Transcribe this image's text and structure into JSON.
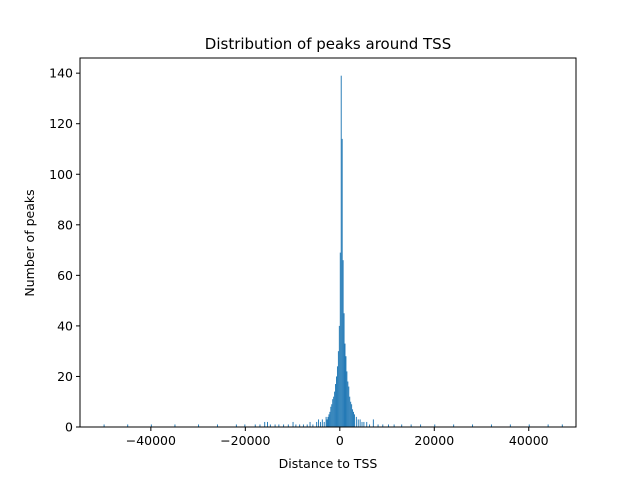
{
  "chart_data": {
    "type": "bar",
    "title": "Distribution of peaks around TSS",
    "xlabel": "Distance to TSS",
    "ylabel": "Number of peaks",
    "xlim": [
      -55000,
      50000
    ],
    "ylim": [
      0,
      146
    ],
    "xticks": [
      -40000,
      -20000,
      0,
      20000,
      40000
    ],
    "xtick_labels": [
      "−40000",
      "−20000",
      "0",
      "20000",
      "40000"
    ],
    "yticks": [
      0,
      20,
      40,
      60,
      80,
      100,
      120,
      140
    ],
    "ytick_labels": [
      "0",
      "20",
      "40",
      "60",
      "80",
      "100",
      "120",
      "140"
    ],
    "bar_color": "#1f77b4",
    "grid": false,
    "legend": "none",
    "bin_width": 200,
    "bins": [
      {
        "x": -50000,
        "y": 1
      },
      {
        "x": -45000,
        "y": 1
      },
      {
        "x": -40000,
        "y": 1
      },
      {
        "x": -35000,
        "y": 1
      },
      {
        "x": -30000,
        "y": 1
      },
      {
        "x": -26000,
        "y": 1
      },
      {
        "x": -22000,
        "y": 1
      },
      {
        "x": -20200,
        "y": 1
      },
      {
        "x": -18000,
        "y": 1
      },
      {
        "x": -17000,
        "y": 1
      },
      {
        "x": -16000,
        "y": 2
      },
      {
        "x": -15400,
        "y": 2
      },
      {
        "x": -14800,
        "y": 1
      },
      {
        "x": -13800,
        "y": 1
      },
      {
        "x": -13000,
        "y": 1
      },
      {
        "x": -12000,
        "y": 1
      },
      {
        "x": -11000,
        "y": 1
      },
      {
        "x": -10000,
        "y": 2
      },
      {
        "x": -9400,
        "y": 1
      },
      {
        "x": -8600,
        "y": 1
      },
      {
        "x": -7800,
        "y": 1
      },
      {
        "x": -7000,
        "y": 1
      },
      {
        "x": -6400,
        "y": 2
      },
      {
        "x": -5800,
        "y": 1
      },
      {
        "x": -5000,
        "y": 2
      },
      {
        "x": -4600,
        "y": 3
      },
      {
        "x": -4200,
        "y": 2
      },
      {
        "x": -3800,
        "y": 3
      },
      {
        "x": -3400,
        "y": 2
      },
      {
        "x": -3000,
        "y": 4
      },
      {
        "x": -2800,
        "y": 3
      },
      {
        "x": -2600,
        "y": 4
      },
      {
        "x": -2400,
        "y": 5
      },
      {
        "x": -2200,
        "y": 6
      },
      {
        "x": -2000,
        "y": 8
      },
      {
        "x": -1800,
        "y": 9
      },
      {
        "x": -1600,
        "y": 11
      },
      {
        "x": -1400,
        "y": 12
      },
      {
        "x": -1200,
        "y": 14
      },
      {
        "x": -1000,
        "y": 17
      },
      {
        "x": -800,
        "y": 20
      },
      {
        "x": -600,
        "y": 24
      },
      {
        "x": -400,
        "y": 30
      },
      {
        "x": -200,
        "y": 40
      },
      {
        "x": 0,
        "y": 69
      },
      {
        "x": 200,
        "y": 139
      },
      {
        "x": 400,
        "y": 114
      },
      {
        "x": 600,
        "y": 66
      },
      {
        "x": 800,
        "y": 45
      },
      {
        "x": 1000,
        "y": 33
      },
      {
        "x": 1200,
        "y": 28
      },
      {
        "x": 1400,
        "y": 22
      },
      {
        "x": 1600,
        "y": 18
      },
      {
        "x": 1800,
        "y": 16
      },
      {
        "x": 2000,
        "y": 12
      },
      {
        "x": 2200,
        "y": 10
      },
      {
        "x": 2400,
        "y": 9
      },
      {
        "x": 2600,
        "y": 7
      },
      {
        "x": 2800,
        "y": 6
      },
      {
        "x": 3000,
        "y": 5
      },
      {
        "x": 3400,
        "y": 4
      },
      {
        "x": 3800,
        "y": 3
      },
      {
        "x": 4200,
        "y": 3
      },
      {
        "x": 4600,
        "y": 2
      },
      {
        "x": 5000,
        "y": 2
      },
      {
        "x": 5600,
        "y": 2
      },
      {
        "x": 6200,
        "y": 1
      },
      {
        "x": 7000,
        "y": 3
      },
      {
        "x": 8000,
        "y": 1
      },
      {
        "x": 9000,
        "y": 1
      },
      {
        "x": 10200,
        "y": 1
      },
      {
        "x": 11400,
        "y": 1
      },
      {
        "x": 13000,
        "y": 1
      },
      {
        "x": 15000,
        "y": 1
      },
      {
        "x": 17000,
        "y": 1
      },
      {
        "x": 20000,
        "y": 1
      },
      {
        "x": 24000,
        "y": 1
      },
      {
        "x": 28000,
        "y": 1
      },
      {
        "x": 32000,
        "y": 1
      },
      {
        "x": 36000,
        "y": 1
      },
      {
        "x": 40000,
        "y": 1
      },
      {
        "x": 44000,
        "y": 1
      },
      {
        "x": 47000,
        "y": 1
      }
    ]
  }
}
